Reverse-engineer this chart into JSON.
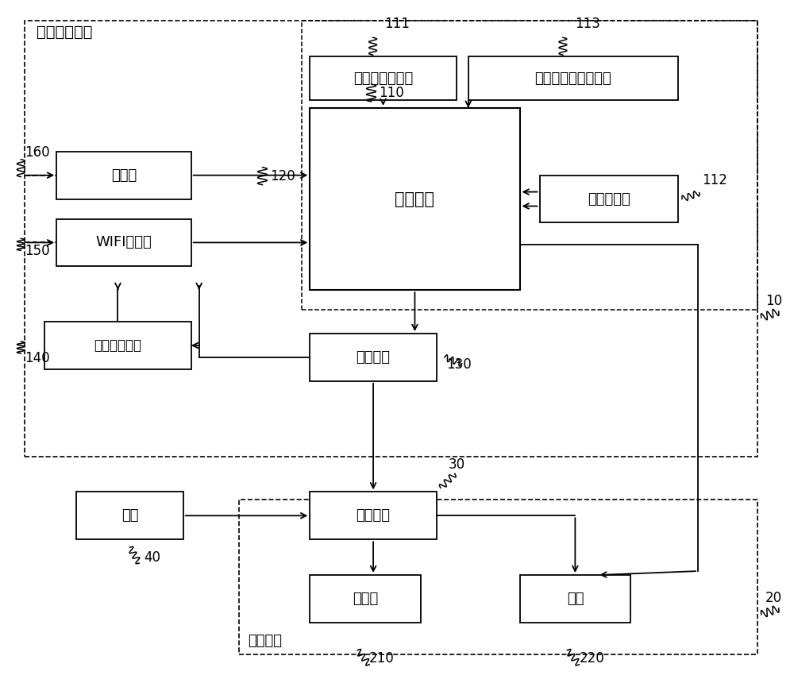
{
  "bg_color": "#ffffff",
  "ctrl_label": "电梯控制装置",
  "ac_label": "电梯空调",
  "boxes": {
    "sensor_motion": {
      "label": "运动检测传感器"
    },
    "sensor_door": {
      "label": "开关门信号采集电路"
    },
    "sensor_temp": {
      "label": "温度传感器"
    },
    "microcontroller": {
      "label": "微控制器"
    },
    "wire_ctrl": {
      "label": "线控器"
    },
    "wifi_op": {
      "label": "WIFI操作器"
    },
    "pressure_sw": {
      "label": "压力保护开关"
    },
    "delay_circuit": {
      "label": "延时电路"
    },
    "power": {
      "label": "电源"
    },
    "controlled_sw": {
      "label": "受控开关"
    },
    "compressor": {
      "label": "压缩机"
    },
    "fan": {
      "label": "风机"
    }
  },
  "refs": {
    "r111": "111",
    "r113": "113",
    "r112": "112",
    "r110": "110",
    "r120": "120",
    "r130": "130",
    "r160": "160",
    "r150": "150",
    "r140": "140",
    "r30": "30",
    "r40": "40",
    "r10": "10",
    "r20": "20",
    "r210": "210",
    "r220": "220"
  }
}
